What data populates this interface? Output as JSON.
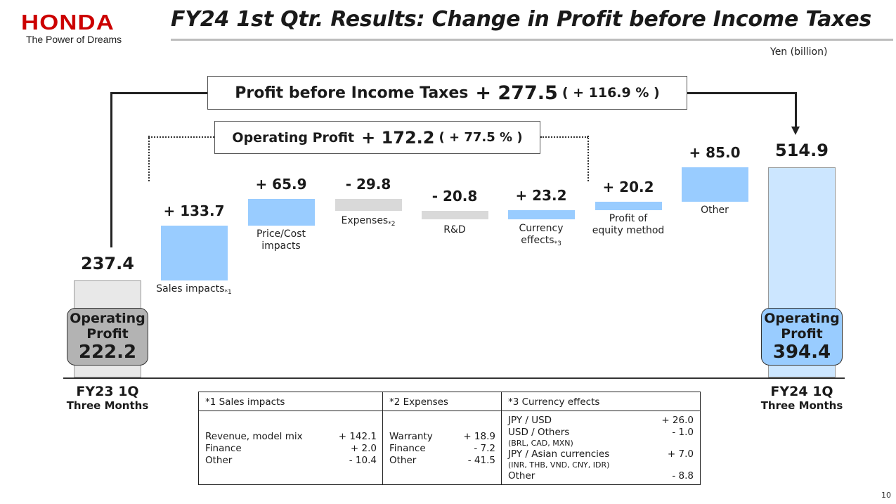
{
  "header": {
    "logo": "HONDA",
    "tagline": "The Power of Dreams",
    "title": "FY24 1st Qtr. Results:  Change in Profit before Income Taxes",
    "unit": "Yen (billion)"
  },
  "summary": {
    "pbit_label": "Profit before Income Taxes",
    "pbit_change": "+ 277.5",
    "pbit_pct": "( + 116.9 % )",
    "op_label": "Operating Profit",
    "op_change": "+ 172.2",
    "op_pct": "( + 77.5 % )"
  },
  "chart_data": {
    "type": "bar",
    "title": "FY24 1st Qtr. Results:  Change in Profit before Income Taxes",
    "unit": "Yen (billion)",
    "start": {
      "period": "FY23 1Q",
      "sub": "Three Months",
      "total": 237.4,
      "total_label": "237.4",
      "op_title": "Operating Profit",
      "op_value": "222.2"
    },
    "end": {
      "period": "FY24 1Q",
      "sub": "Three Months",
      "total": 514.9,
      "total_label": "514.9",
      "op_title": "Operating Profit",
      "op_value": "394.4"
    },
    "steps": [
      {
        "category": "Sales impacts",
        "note": "*1",
        "value": 133.7,
        "label": "+ 133.7"
      },
      {
        "category": "Price/Cost impacts",
        "note": "",
        "value": 65.9,
        "label": "+ 65.9"
      },
      {
        "category": "Expenses",
        "note": "*2",
        "value": -29.8,
        "label": "- 29.8"
      },
      {
        "category": "R&D",
        "note": "",
        "value": -20.8,
        "label": "- 20.8"
      },
      {
        "category": "Currency effects",
        "note": "*3",
        "value": 23.2,
        "label": "+ 23.2"
      },
      {
        "category": "Profit of equity method",
        "note": "",
        "value": 20.2,
        "label": "+ 20.2"
      },
      {
        "category": "Other",
        "note": "",
        "value": 85.0,
        "label": "+ 85.0"
      }
    ],
    "colors": {
      "increase": "#99ccff",
      "decrease": "#d9d9d9",
      "start_total": "#e8e8e8",
      "end_total": "#cce6ff",
      "start_op": "#b3b3b3",
      "end_op": "#99ccff"
    }
  },
  "footnotes": {
    "sales": {
      "title": "*1 Sales impacts",
      "rows": [
        {
          "name": "Revenue, model mix",
          "value": "+ 142.1"
        },
        {
          "name": "Finance",
          "value": "+ 2.0"
        },
        {
          "name": "Other",
          "value": "- 10.4"
        }
      ]
    },
    "expenses": {
      "title": "*2 Expenses",
      "rows": [
        {
          "name": "Warranty",
          "value": "+ 18.9"
        },
        {
          "name": "Finance",
          "value": "- 7.2"
        },
        {
          "name": "Other",
          "value": "- 41.5"
        }
      ]
    },
    "currency": {
      "title": "*3 Currency effects",
      "rows": [
        {
          "name": "JPY / USD",
          "value": "+ 26.0",
          "sub": ""
        },
        {
          "name": "USD / Others",
          "value": "- 1.0",
          "sub": "(BRL, CAD, MXN)"
        },
        {
          "name": "JPY / Asian currencies",
          "value": "+ 7.0",
          "sub": "(INR, THB, VND, CNY, IDR)"
        },
        {
          "name": "Other",
          "value": "- 8.8",
          "sub": ""
        }
      ]
    }
  },
  "page_number": "10"
}
